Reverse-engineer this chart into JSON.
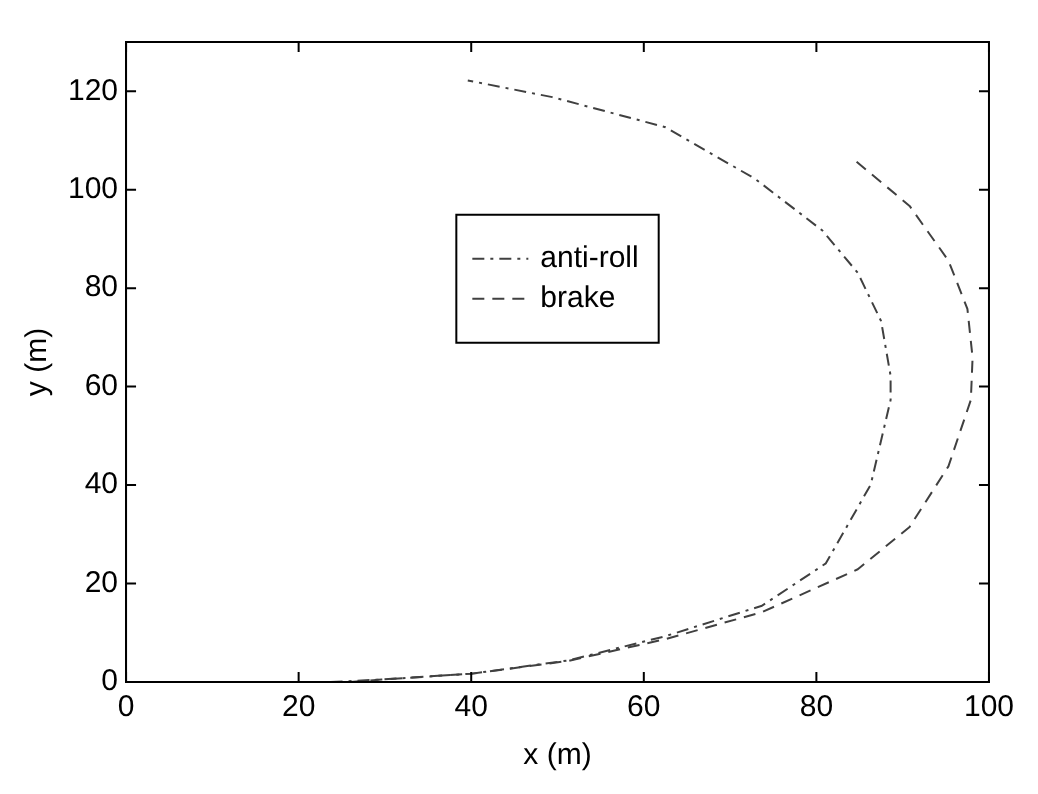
{
  "chart_data": {
    "type": "line",
    "xlabel": "x (m)",
    "ylabel": "y (m)",
    "xlim": [
      0,
      100
    ],
    "xticks": [
      0,
      20,
      40,
      60,
      80,
      100
    ],
    "ylim": [
      0,
      130
    ],
    "yticks": [
      0,
      20,
      40,
      60,
      80,
      100,
      120
    ],
    "grid": false,
    "legend": "top",
    "marker": "none",
    "series": [
      {
        "name": "anti-roll",
        "color": "#404040",
        "line_style": "dashdot",
        "x": [
          23.7,
          29.6,
          40.1,
          51.3,
          62.5,
          73.7,
          81.1,
          86.3,
          88.6,
          88.6,
          87.5,
          84.8,
          80.7,
          72.9,
          62.5,
          49.4,
          39.6
        ],
        "values": [
          0,
          0.5,
          1.7,
          4.4,
          9.3,
          15.5,
          24.1,
          40.1,
          57.3,
          62.2,
          73.3,
          83.1,
          91.7,
          102.2,
          112.7,
          118.8,
          122.2
        ]
      },
      {
        "name": "brake",
        "color": "#404040",
        "line_style": "dashed",
        "x": [
          26,
          29.6,
          40.1,
          51.3,
          62.5,
          73.7,
          84.8,
          90.8,
          95.3,
          97.9,
          98.1,
          97.5,
          95.3,
          90.8,
          84.5
        ],
        "values": [
          0,
          0.5,
          1.7,
          4.3,
          8.7,
          14.2,
          22.9,
          31.5,
          43.8,
          57.3,
          65.9,
          75.8,
          85.6,
          96.7,
          105.9
        ]
      }
    ]
  }
}
